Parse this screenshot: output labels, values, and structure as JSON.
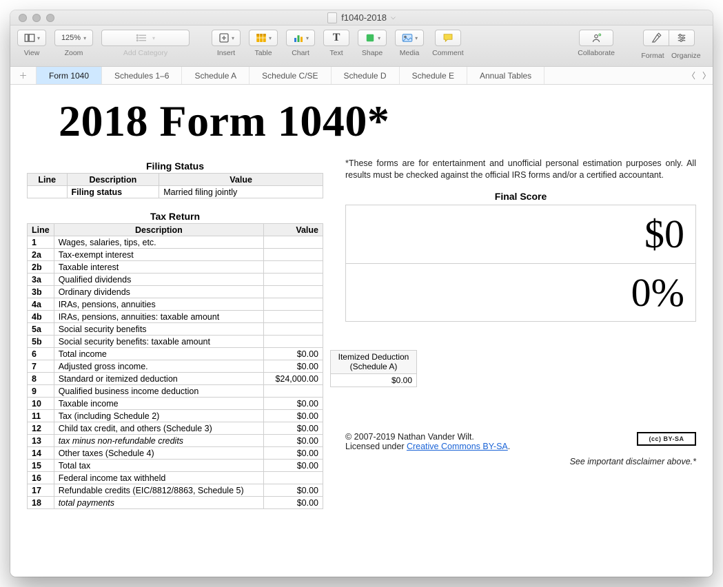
{
  "window": {
    "title": "f1040-2018"
  },
  "toolbar": {
    "view": "View",
    "zoom_value": "125%",
    "zoom": "Zoom",
    "add_category": "Add Category",
    "insert": "Insert",
    "table": "Table",
    "chart": "Chart",
    "text": "Text",
    "shape": "Shape",
    "media": "Media",
    "comment": "Comment",
    "collaborate": "Collaborate",
    "format": "Format",
    "organize": "Organize"
  },
  "tabs": {
    "items": [
      "Form 1040",
      "Schedules 1–6",
      "Schedule A",
      "Schedule C/SE",
      "Schedule D",
      "Schedule E",
      "Annual Tables"
    ],
    "active_index": 0
  },
  "document": {
    "title": "2018 Form 1040*",
    "filing_status": {
      "heading": "Filing Status",
      "columns": [
        "Line",
        "Description",
        "Value"
      ],
      "row": {
        "line": "",
        "desc": "Filing status",
        "value": "Married filing jointly"
      }
    },
    "tax_return": {
      "heading": "Tax Return",
      "columns": [
        "Line",
        "Description",
        "Value"
      ],
      "rows": [
        {
          "line": "1",
          "desc": "Wages, salaries, tips, etc.",
          "value": ""
        },
        {
          "line": "2a",
          "desc": "Tax-exempt interest",
          "value": ""
        },
        {
          "line": "2b",
          "desc": "Taxable interest",
          "value": ""
        },
        {
          "line": "3a",
          "desc": "Qualified dividends",
          "value": ""
        },
        {
          "line": "3b",
          "desc": "Ordinary dividends",
          "value": ""
        },
        {
          "line": "4a",
          "desc": "IRAs, pensions, annuities",
          "value": ""
        },
        {
          "line": "4b",
          "desc": "IRAs, pensions, annuities: taxable amount",
          "value": ""
        },
        {
          "line": "5a",
          "desc": "Social security benefits",
          "value": ""
        },
        {
          "line": "5b",
          "desc": "Social security benefits: taxable amount",
          "value": ""
        },
        {
          "line": "6",
          "desc": "Total income",
          "value": "$0.00"
        },
        {
          "line": "7",
          "desc": "Adjusted gross income.",
          "value": "$0.00"
        },
        {
          "line": "8",
          "desc": "Standard or itemized deduction",
          "value": "$24,000.00"
        },
        {
          "line": "9",
          "desc": "Qualified business income deduction",
          "value": ""
        },
        {
          "line": "10",
          "desc": "Taxable income",
          "value": "$0.00"
        },
        {
          "line": "11",
          "desc": "Tax (including Schedule 2)",
          "value": "$0.00"
        },
        {
          "line": "12",
          "desc": "Child tax credit, and others (Schedule 3)",
          "value": "$0.00"
        },
        {
          "line": "13",
          "desc": "tax minus non-refundable credits",
          "value": "$0.00",
          "italic": true
        },
        {
          "line": "14",
          "desc": "Other taxes (Schedule 4)",
          "value": "$0.00"
        },
        {
          "line": "15",
          "desc": "Total tax",
          "value": "$0.00"
        },
        {
          "line": "16",
          "desc": "Federal income tax withheld",
          "value": ""
        },
        {
          "line": "17",
          "desc": "Refundable credits (EIC/8812/8863, Schedule 5)",
          "value": "$0.00"
        },
        {
          "line": "18",
          "desc": "total payments",
          "value": "$0.00",
          "italic": true
        }
      ]
    },
    "footnote": "*These forms are for entertainment and unofficial personal estimation purposes only. All results must be checked against the official IRS forms and/or a certified accountant.",
    "final_score": {
      "heading": "Final Score",
      "amount": "$0",
      "percent": "0%"
    },
    "itemized": {
      "heading": "Itemized Deduction (Schedule A)",
      "value": "$0.00"
    },
    "copyright": {
      "text1": "© 2007-2019 Nathan Vander Wilt.",
      "text2a": "Licensed under ",
      "link": "Creative Commons BY-SA",
      "text2b": ".",
      "badge": "(cc) BY-SA",
      "disclaimer": "See important disclaimer above.*"
    }
  }
}
